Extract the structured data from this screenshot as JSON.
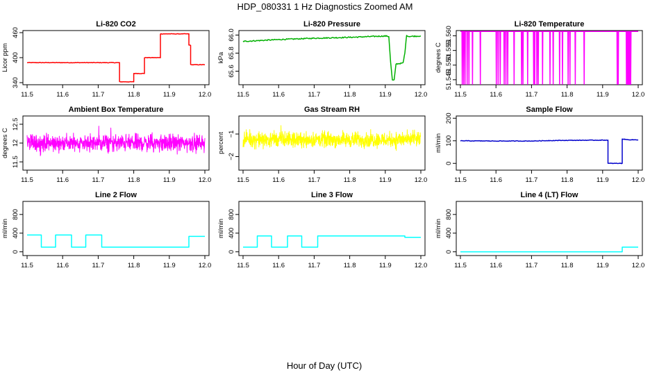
{
  "figure": {
    "title": "HDP_080331  1 Hz Diagnostics Zoomed AM",
    "xlabel": "Hour of Day (UTC)"
  },
  "chart_data": [
    {
      "type": "line",
      "title": "Li-820 CO2",
      "ylabel": "Licor ppm",
      "color": "#ff0000",
      "xlim": [
        11.5,
        12.0
      ],
      "ylim": [
        335,
        465
      ],
      "xticks": [
        11.5,
        11.6,
        11.7,
        11.8,
        11.9,
        12.0
      ],
      "xtick_labels": [
        "11.5",
        "11.6",
        "11.7",
        "11.8",
        "11.9",
        "12.0"
      ],
      "yticks": [
        340,
        400,
        460
      ],
      "ytick_labels": [
        "340",
        "400",
        "460"
      ],
      "noise": 0.6,
      "series": [
        {
          "x": [
            11.5,
            11.76,
            11.76,
            11.8,
            11.8,
            11.83,
            11.83,
            11.875,
            11.875,
            11.955,
            11.955,
            11.96,
            11.96,
            12.0
          ],
          "y": [
            388,
            388,
            342,
            342,
            362,
            362,
            400,
            400,
            457,
            457,
            430,
            430,
            383,
            383
          ]
        }
      ]
    },
    {
      "type": "line",
      "title": "Li-820 Pressure",
      "ylabel": "kPa",
      "color": "#00b000",
      "xlim": [
        11.5,
        12.0
      ],
      "ylim": [
        65.45,
        66.05
      ],
      "xticks": [
        11.5,
        11.6,
        11.7,
        11.8,
        11.9,
        12.0
      ],
      "xtick_labels": [
        "11.5",
        "11.6",
        "11.7",
        "11.8",
        "11.9",
        "12.0"
      ],
      "yticks": [
        65.6,
        65.8,
        66.0
      ],
      "ytick_labels": [
        "65.6",
        "65.8",
        "66.0"
      ],
      "noise": 0.006,
      "series": [
        {
          "x": [
            11.5,
            11.6,
            11.7,
            11.8,
            11.9,
            11.91,
            11.915,
            11.92,
            11.925,
            11.93,
            11.95,
            11.955,
            11.96,
            11.965,
            12.0
          ],
          "y": [
            65.93,
            65.95,
            65.965,
            65.975,
            65.99,
            65.985,
            65.7,
            65.5,
            65.5,
            65.68,
            65.69,
            65.8,
            66.0,
            65.985,
            65.99
          ]
        }
      ]
    },
    {
      "type": "line",
      "title": "Li-820 Temperature",
      "ylabel": "degrees C",
      "color": "#ff00ff",
      "xlim": [
        11.5,
        12.0
      ],
      "ylim": [
        51.5433,
        51.5618
      ],
      "xticks": [
        11.5,
        11.6,
        11.7,
        11.8,
        11.9,
        12.0
      ],
      "xtick_labels": [
        "11.5",
        "11.6",
        "11.7",
        "11.8",
        "11.9",
        "12.0"
      ],
      "yticks": [
        51.545,
        51.55,
        51.555,
        51.56
      ],
      "ytick_labels": [
        "51.545",
        "51.550",
        "51.555",
        "51.560"
      ],
      "baseline": 51.5615,
      "low": 51.5435,
      "dropouts": [
        11.505,
        11.509,
        11.513,
        11.519,
        11.524,
        11.534,
        11.556,
        11.601,
        11.606,
        11.612,
        11.623,
        11.628,
        11.633,
        11.651,
        11.672,
        11.676,
        11.689,
        11.706,
        11.709,
        11.715,
        11.719,
        11.731,
        11.752,
        11.761,
        11.779,
        11.787,
        11.803,
        11.808,
        11.823,
        11.848,
        11.941,
        11.944,
        11.967,
        11.969,
        11.971,
        11.973,
        11.975,
        11.977,
        11.979
      ]
    },
    {
      "type": "line",
      "title": "Ambient Box Temperature",
      "ylabel": "degrees C",
      "color": "#ff00ff",
      "xlim": [
        11.5,
        12.0
      ],
      "ylim": [
        11.28,
        12.72
      ],
      "xticks": [
        11.5,
        11.6,
        11.7,
        11.8,
        11.9,
        12.0
      ],
      "xtick_labels": [
        "11.5",
        "11.6",
        "11.7",
        "11.8",
        "11.9",
        "12.0"
      ],
      "yticks": [
        11.5,
        12.0,
        12.5
      ],
      "ytick_labels": [
        "11.5",
        "12",
        "12.5"
      ],
      "mean": 12.0,
      "spread": 0.33
    },
    {
      "type": "line",
      "title": "Gas Stream RH",
      "ylabel": "percent",
      "color": "#ffff00",
      "xlim": [
        11.5,
        12.0
      ],
      "ylim": [
        -2.6,
        -0.2
      ],
      "xticks": [
        11.5,
        11.6,
        11.7,
        11.8,
        11.9,
        12.0
      ],
      "xtick_labels": [
        "11.5",
        "11.6",
        "11.7",
        "11.8",
        "11.9",
        "12.0"
      ],
      "yticks": [
        -2,
        -1
      ],
      "ytick_labels": [
        "−2",
        "−1"
      ],
      "mean": -1.25,
      "spread": 0.5
    },
    {
      "type": "line",
      "title": "Sample Flow",
      "ylabel": "ml/min",
      "color": "#0000cc",
      "xlim": [
        11.5,
        12.0
      ],
      "ylim": [
        -30,
        210
      ],
      "xticks": [
        11.5,
        11.6,
        11.7,
        11.8,
        11.9,
        12.0
      ],
      "xtick_labels": [
        "11.5",
        "11.6",
        "11.7",
        "11.8",
        "11.9",
        "12.0"
      ],
      "yticks": [
        0,
        100,
        200
      ],
      "ytick_labels": [
        "0",
        "100",
        "200"
      ],
      "noise": 1.2,
      "series": [
        {
          "x": [
            11.5,
            11.6,
            11.7,
            11.75,
            11.8,
            11.915,
            11.915,
            11.955,
            11.955,
            11.97,
            12.0
          ],
          "y": [
            100,
            99,
            99,
            101,
            102,
            103,
            0,
            0,
            108,
            105,
            104
          ]
        }
      ]
    },
    {
      "type": "line",
      "title": "Line 2 Flow",
      "ylabel": "ml/min",
      "color": "#00ffff",
      "xlim": [
        11.5,
        12.0
      ],
      "ylim": [
        -80,
        1080
      ],
      "xticks": [
        11.5,
        11.6,
        11.7,
        11.8,
        11.9,
        12.0
      ],
      "xtick_labels": [
        "11.5",
        "11.6",
        "11.7",
        "11.8",
        "11.9",
        "12.0"
      ],
      "yticks": [
        0,
        400,
        800
      ],
      "ytick_labels": [
        "0",
        "400",
        "800"
      ],
      "noise": 0,
      "series": [
        {
          "x": [
            11.5,
            11.54,
            11.54,
            11.58,
            11.58,
            11.625,
            11.625,
            11.665,
            11.665,
            11.71,
            11.71,
            11.955,
            11.955,
            12.0
          ],
          "y": [
            360,
            360,
            100,
            100,
            360,
            360,
            100,
            100,
            360,
            360,
            100,
            100,
            330,
            330
          ]
        }
      ]
    },
    {
      "type": "line",
      "title": "Line 3 Flow",
      "ylabel": "ml/min",
      "color": "#00ffff",
      "xlim": [
        11.5,
        12.0
      ],
      "ylim": [
        -80,
        1080
      ],
      "xticks": [
        11.5,
        11.6,
        11.7,
        11.8,
        11.9,
        12.0
      ],
      "xtick_labels": [
        "11.5",
        "11.6",
        "11.7",
        "11.8",
        "11.9",
        "12.0"
      ],
      "yticks": [
        0,
        400,
        800
      ],
      "ytick_labels": [
        "0",
        "400",
        "800"
      ],
      "noise": 0,
      "series": [
        {
          "x": [
            11.5,
            11.54,
            11.54,
            11.58,
            11.58,
            11.625,
            11.625,
            11.665,
            11.665,
            11.71,
            11.71,
            11.955,
            11.955,
            12.0
          ],
          "y": [
            100,
            100,
            340,
            340,
            100,
            100,
            340,
            340,
            100,
            100,
            340,
            340,
            310,
            310
          ]
        }
      ]
    },
    {
      "type": "line",
      "title": "Line 4 (LT) Flow",
      "ylabel": "ml/min",
      "color": "#00ffff",
      "xlim": [
        11.5,
        12.0
      ],
      "ylim": [
        -80,
        1080
      ],
      "xticks": [
        11.5,
        11.6,
        11.7,
        11.8,
        11.9,
        12.0
      ],
      "xtick_labels": [
        "11.5",
        "11.6",
        "11.7",
        "11.8",
        "11.9",
        "12.0"
      ],
      "yticks": [
        0,
        400,
        800
      ],
      "ytick_labels": [
        "0",
        "400",
        "800"
      ],
      "noise": 0,
      "series": [
        {
          "x": [
            11.5,
            11.955,
            11.955,
            12.0
          ],
          "y": [
            0,
            0,
            100,
            100
          ]
        }
      ]
    }
  ]
}
